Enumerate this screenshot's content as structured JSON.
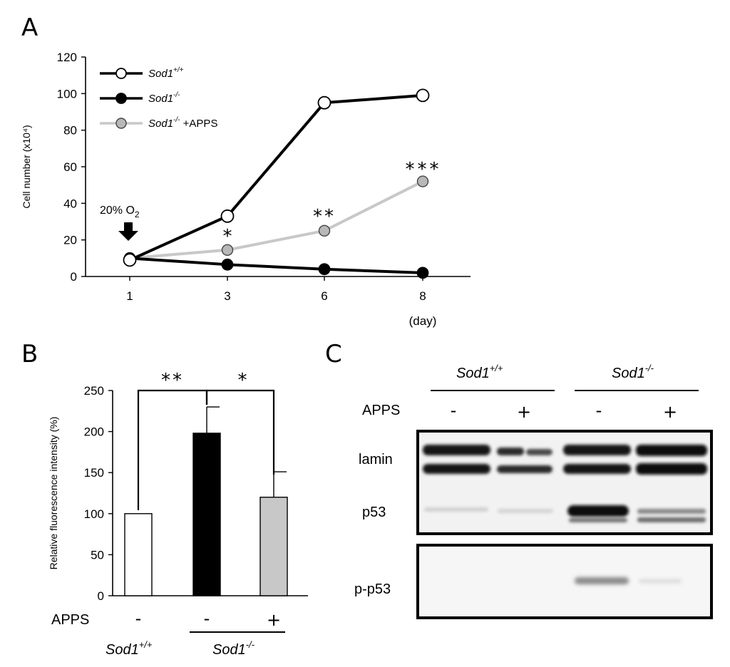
{
  "panel_labels": {
    "a": "A",
    "b": "B",
    "c": "C"
  },
  "chart_data": [
    {
      "panel": "A",
      "type": "line",
      "ylabel": "Cell number (x10⁴)",
      "xlabel": "(day)",
      "x": [
        1,
        3,
        6,
        8
      ],
      "yticks": [
        0,
        20,
        40,
        60,
        80,
        100,
        120
      ],
      "ylim": [
        0,
        120
      ],
      "series": [
        {
          "name": "Sod1+/+",
          "values": [
            9,
            33,
            95,
            99
          ],
          "line_color": "#000000",
          "marker_fill": "#ffffff"
        },
        {
          "name": "Sod1-/-",
          "values": [
            10,
            6.5,
            4,
            2
          ],
          "line_color": "#000000",
          "marker_fill": "#000000"
        },
        {
          "name": "Sod1-/- +APPS",
          "values": [
            10,
            14.5,
            25,
            52
          ],
          "line_color": "#c8c8c8",
          "marker_fill": "#b8b8b8"
        }
      ],
      "legend": [
        {
          "prefix": "Sod1",
          "sup": "+/+",
          "suffix": ""
        },
        {
          "prefix": "Sod1",
          "sup": "-/-",
          "suffix": ""
        },
        {
          "prefix": "Sod1",
          "sup": "-/-",
          "suffix": " +APPS"
        }
      ],
      "annotations": {
        "arrow_label_main": "20% O",
        "arrow_label_sub": "2",
        "stars": [
          "*",
          "**",
          "***"
        ]
      }
    },
    {
      "panel": "B",
      "type": "bar",
      "ylabel": "Relative fluorescence intensity (%)",
      "yticks": [
        0,
        50,
        100,
        150,
        200,
        250
      ],
      "ylim": [
        0,
        250
      ],
      "values": [
        100,
        198,
        120
      ],
      "errors": [
        0,
        32,
        31
      ],
      "colors": [
        "#ffffff",
        "#000000",
        "#c8c8c8"
      ],
      "row_label": "APPS",
      "apps_signs": [
        "-",
        "-",
        "+"
      ],
      "group_labels": [
        {
          "prefix": "Sod1",
          "sup": "+/+"
        },
        {
          "prefix": "Sod1",
          "sup": "-/-"
        }
      ],
      "significance": [
        "**",
        "*"
      ]
    }
  ],
  "western_blot": {
    "group_labels": [
      {
        "prefix": "Sod1",
        "sup": "+/+"
      },
      {
        "prefix": "Sod1",
        "sup": "-/-"
      }
    ],
    "row_label": "APPS",
    "signs": [
      "-",
      "+",
      "-",
      "+"
    ],
    "bands": [
      "lamin",
      "p53",
      "p-p53"
    ]
  }
}
